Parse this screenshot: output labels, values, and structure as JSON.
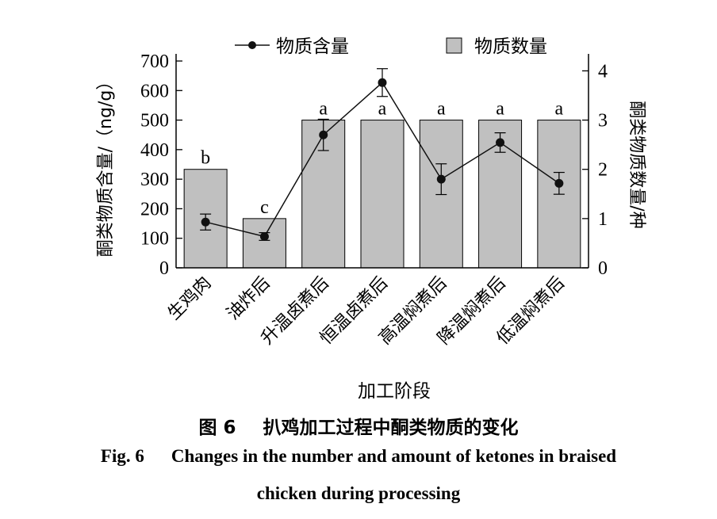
{
  "chart_data": {
    "type": "bar",
    "categories": [
      "生鸡肉",
      "油炸后",
      "升温卤煮后",
      "恒温卤煮后",
      "高温焖煮后",
      "降温焖煮后",
      "低温焖煮后"
    ],
    "xlabel": "加工阶段",
    "ylabel_left": "酮类物质含量/（ng/g）",
    "ylabel_right": "酮类物质数量/种",
    "ylim_left": [
      0,
      700
    ],
    "yticks_left": [
      0,
      100,
      200,
      300,
      400,
      500,
      600,
      700
    ],
    "ylim_right": [
      0,
      4.2
    ],
    "yticks_right": [
      0,
      1,
      2,
      3,
      4
    ],
    "legend_position": "top",
    "grid": false,
    "series": [
      {
        "name": "物质数量",
        "type": "bar",
        "axis": "right",
        "values": [
          2,
          1,
          3,
          3,
          3,
          3,
          3
        ],
        "labels": [
          "b",
          "c",
          "a",
          "a",
          "a",
          "a",
          "a"
        ],
        "color": "#c0c0c0"
      },
      {
        "name": "物质含量",
        "type": "line",
        "axis": "left",
        "values": [
          155,
          106,
          450,
          627,
          300,
          424,
          286
        ],
        "errors": [
          27,
          13,
          53,
          47,
          52,
          33,
          37
        ],
        "color": "#111111"
      }
    ]
  },
  "caption": {
    "cn_prefix": "图 6",
    "cn_text": "扒鸡加工过程中酮类物质的变化",
    "en_prefix": "Fig. 6",
    "en_line1": "Changes in the number and amount of ketones in braised",
    "en_line2": "chicken during processing"
  }
}
